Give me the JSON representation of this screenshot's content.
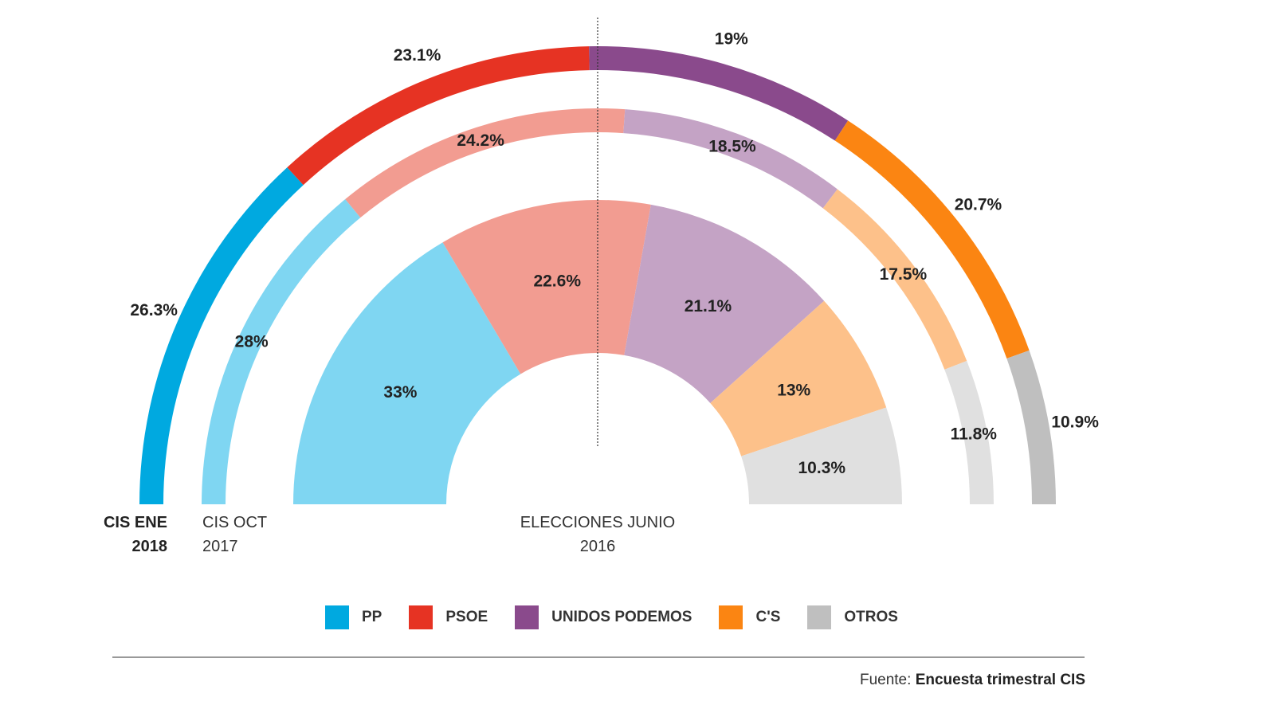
{
  "chart_data": {
    "type": "pie",
    "variant": "nested semi-donut",
    "categories": [
      "PP",
      "PSOE",
      "UNIDOS PODEMOS",
      "C'S",
      "OTROS"
    ],
    "colors": [
      "#00a9e0",
      "#e63323",
      "#8a4a8c",
      "#fb8512",
      "#bfbfbf"
    ],
    "light_colors": [
      "#7fd6f2",
      "#f29c91",
      "#c4a3c5",
      "#fdc18a",
      "#e0e0e0"
    ],
    "series": [
      {
        "name": "CIS ENE 2018",
        "title_line1": "CIS ENE",
        "title_line2": "2018",
        "values": [
          26.3,
          23.1,
          19,
          20.7,
          10.9
        ],
        "labels": [
          "26.3%",
          "23.1%",
          "19%",
          "20.7%",
          "10.9%"
        ]
      },
      {
        "name": "CIS OCT 2017",
        "title_line1": "CIS OCT",
        "title_line2": "2017",
        "values": [
          28,
          24.2,
          18.5,
          17.5,
          11.8
        ],
        "labels": [
          "28%",
          "24.2%",
          "18.5%",
          "17.5%",
          "11.8%"
        ]
      },
      {
        "name": "ELECCIONES JUNIO 2016",
        "title_line1": "ELECCIONES JUNIO",
        "title_line2": "2016",
        "values": [
          33,
          22.6,
          21.1,
          13,
          10.3
        ],
        "labels": [
          "33%",
          "22.6%",
          "21.1%",
          "13%",
          "10.3%"
        ]
      }
    ],
    "unit": "%",
    "legend_position": "bottom"
  },
  "source": {
    "prefix": "Fuente:",
    "text": "Encuesta trimestral CIS"
  }
}
